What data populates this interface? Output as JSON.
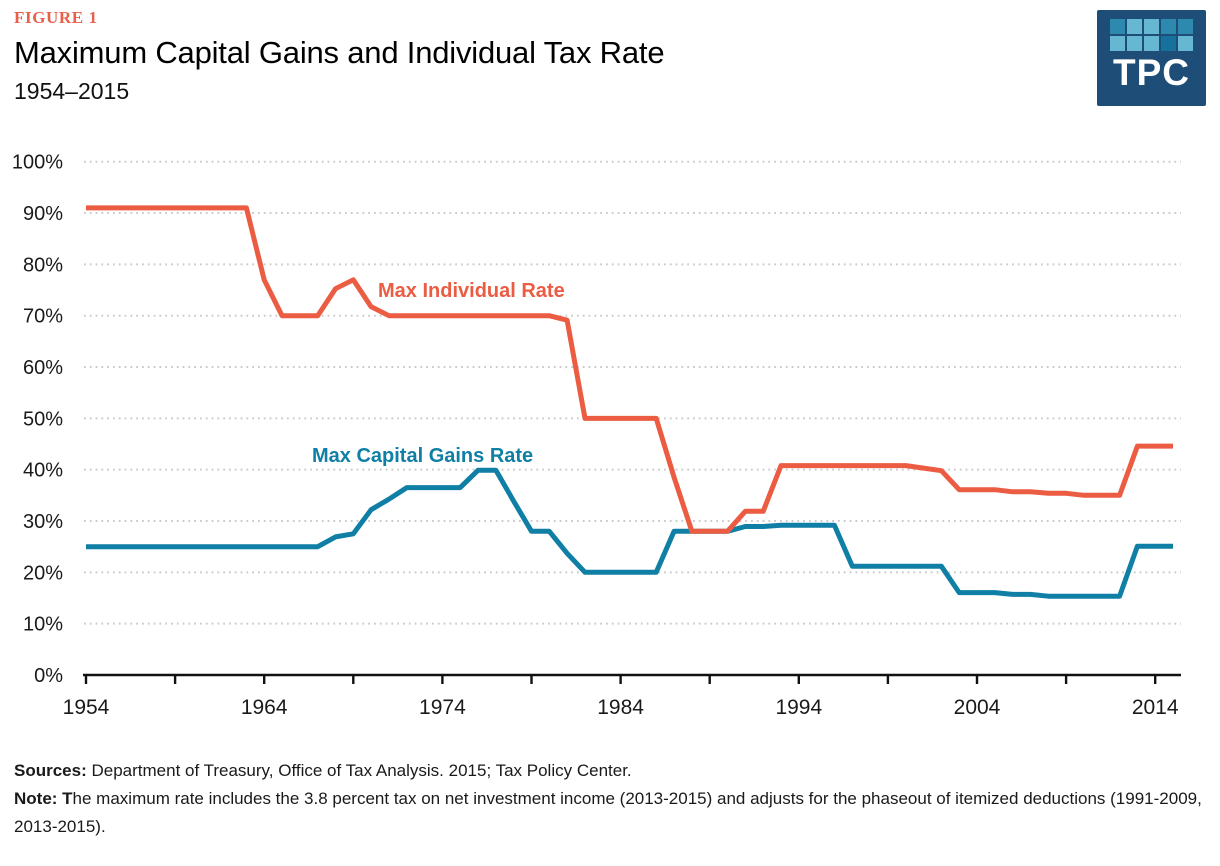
{
  "header": {
    "figure_label": "FIGURE 1",
    "title": "Maximum Capital Gains and Individual Tax Rate",
    "subtitle": "1954–2015",
    "logo": {
      "text": "TPC",
      "bg": "#1e4d77",
      "grid": [
        [
          "#2e89ae",
          "#66b7d1",
          "#66b7d1",
          "#2e89ae",
          "#2e89ae"
        ],
        [
          "#66b7d1",
          "#66b7d1",
          "#66b7d1",
          "#16719c",
          "#66b7d1"
        ]
      ]
    }
  },
  "chart_data": {
    "type": "line",
    "title": "Maximum Capital Gains and Individual Tax Rate",
    "subtitle": "1954–2015",
    "xlabel": "",
    "ylabel": "",
    "xlim": [
      1954,
      2015
    ],
    "ylim": [
      0,
      100
    ],
    "grid": "horizontal-dotted",
    "legend": "inline-labels",
    "y_tick_labels": [
      "0%",
      "10%",
      "20%",
      "30%",
      "40%",
      "50%",
      "60%",
      "70%",
      "80%",
      "90%",
      "100%"
    ],
    "x_tick_labels": [
      "1954",
      "1964",
      "1974",
      "1984",
      "1994",
      "2004",
      "2014"
    ],
    "x_minor_tick_step": 5,
    "x": [
      1954,
      1955,
      1956,
      1957,
      1958,
      1959,
      1960,
      1961,
      1962,
      1963,
      1964,
      1965,
      1966,
      1967,
      1968,
      1969,
      1970,
      1971,
      1972,
      1973,
      1974,
      1975,
      1976,
      1977,
      1978,
      1979,
      1980,
      1981,
      1982,
      1983,
      1984,
      1985,
      1986,
      1987,
      1988,
      1989,
      1990,
      1991,
      1992,
      1993,
      1994,
      1995,
      1996,
      1997,
      1998,
      1999,
      2000,
      2001,
      2002,
      2003,
      2004,
      2005,
      2006,
      2007,
      2008,
      2009,
      2010,
      2011,
      2012,
      2013,
      2014,
      2015
    ],
    "series": [
      {
        "name": "Max Individual Rate",
        "color": "#eb5c42",
        "values": [
          91,
          91,
          91,
          91,
          91,
          91,
          91,
          91,
          91,
          91,
          77,
          70,
          70,
          70,
          75.25,
          77,
          71.75,
          70,
          70,
          70,
          70,
          70,
          70,
          70,
          70,
          70,
          70,
          69.13,
          50,
          50,
          50,
          50,
          50,
          38.5,
          28,
          28,
          28,
          31.9,
          31.9,
          40.8,
          40.8,
          40.8,
          40.8,
          40.8,
          40.8,
          40.8,
          40.8,
          40.3,
          39.8,
          36.1,
          36.1,
          36.1,
          35.7,
          35.7,
          35.4,
          35.4,
          35,
          35,
          35,
          44.6,
          44.6,
          44.6
        ]
      },
      {
        "name": "Max Capital Gains Rate",
        "color": "#0f7fa5",
        "values": [
          25,
          25,
          25,
          25,
          25,
          25,
          25,
          25,
          25,
          25,
          25,
          25,
          25,
          25,
          26.9,
          27.5,
          32.2,
          34.25,
          36.5,
          36.5,
          36.5,
          36.5,
          39.88,
          39.88,
          33.85,
          28,
          28,
          23.7,
          20,
          20,
          20,
          20,
          20,
          28,
          28,
          28,
          28,
          28.93,
          28.93,
          29.19,
          29.19,
          29.19,
          29.19,
          21.19,
          21.19,
          21.19,
          21.19,
          21.17,
          21.17,
          16.05,
          16.05,
          16.05,
          15.7,
          15.7,
          15.35,
          15.35,
          15.35,
          15.35,
          15.35,
          25.1,
          25.1,
          25.1
        ]
      }
    ]
  },
  "footer": {
    "sources_label": "Sources:",
    "sources_text": " Department of Treasury, Office of Tax Analysis. 2015; Tax Policy Center.",
    "note_label": "Note: T",
    "note_text": "he maximum rate includes the 3.8 percent tax on net investment income (2013-2015) and adjusts for the phaseout of itemized deductions (1991-2009, 2013-2015)."
  }
}
